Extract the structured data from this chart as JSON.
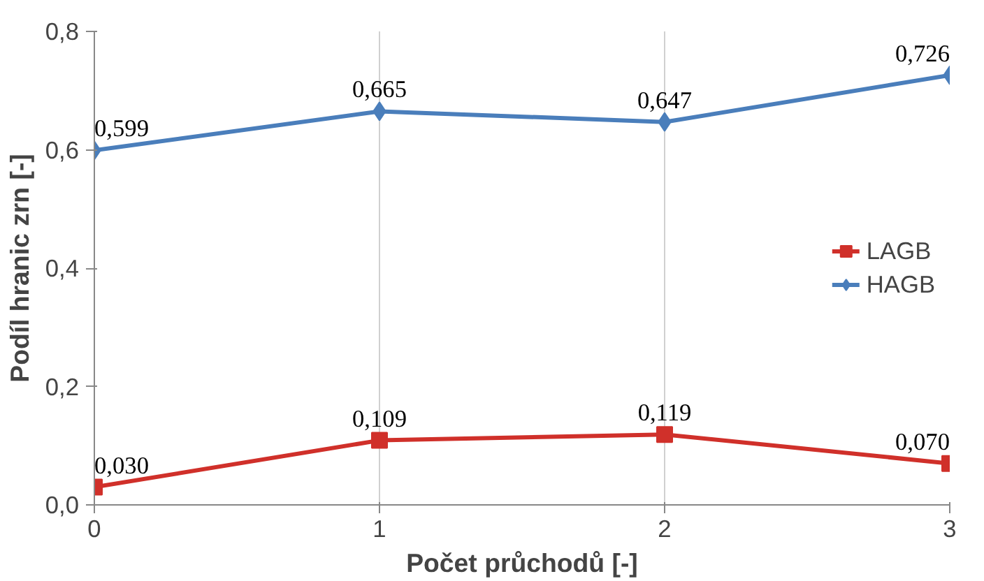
{
  "chart_data": {
    "type": "line",
    "xlabel": "Počet průchodů [-]",
    "ylabel": "Podíl hranic zrn [-]",
    "x": [
      0,
      1,
      2,
      3
    ],
    "series": [
      {
        "name": "LAGB",
        "color": "#d0302a",
        "marker": "square",
        "values": [
          0.03,
          0.109,
          0.119,
          0.07
        ],
        "value_labels": [
          "0,030",
          "0,109",
          "0,119",
          "0,070"
        ]
      },
      {
        "name": "HAGB",
        "color": "#4a7ebb",
        "marker": "diamond",
        "values": [
          0.599,
          0.665,
          0.647,
          0.726
        ],
        "value_labels": [
          "0,599",
          "0,665",
          "0,647",
          "0,726"
        ]
      }
    ],
    "xlim": [
      0,
      3
    ],
    "xticks": [
      0,
      1,
      2,
      3
    ],
    "ylim": [
      0,
      0.8
    ],
    "yticks": [
      {
        "value": 0,
        "label": "0,0"
      },
      {
        "value": 0.2,
        "label": "0,2"
      },
      {
        "value": 0.4,
        "label": "0,4"
      },
      {
        "value": 0.6,
        "label": "0,6"
      },
      {
        "value": 0.8,
        "label": "0,8"
      }
    ],
    "grid": "x",
    "legend": "right",
    "line_style": "solid"
  }
}
